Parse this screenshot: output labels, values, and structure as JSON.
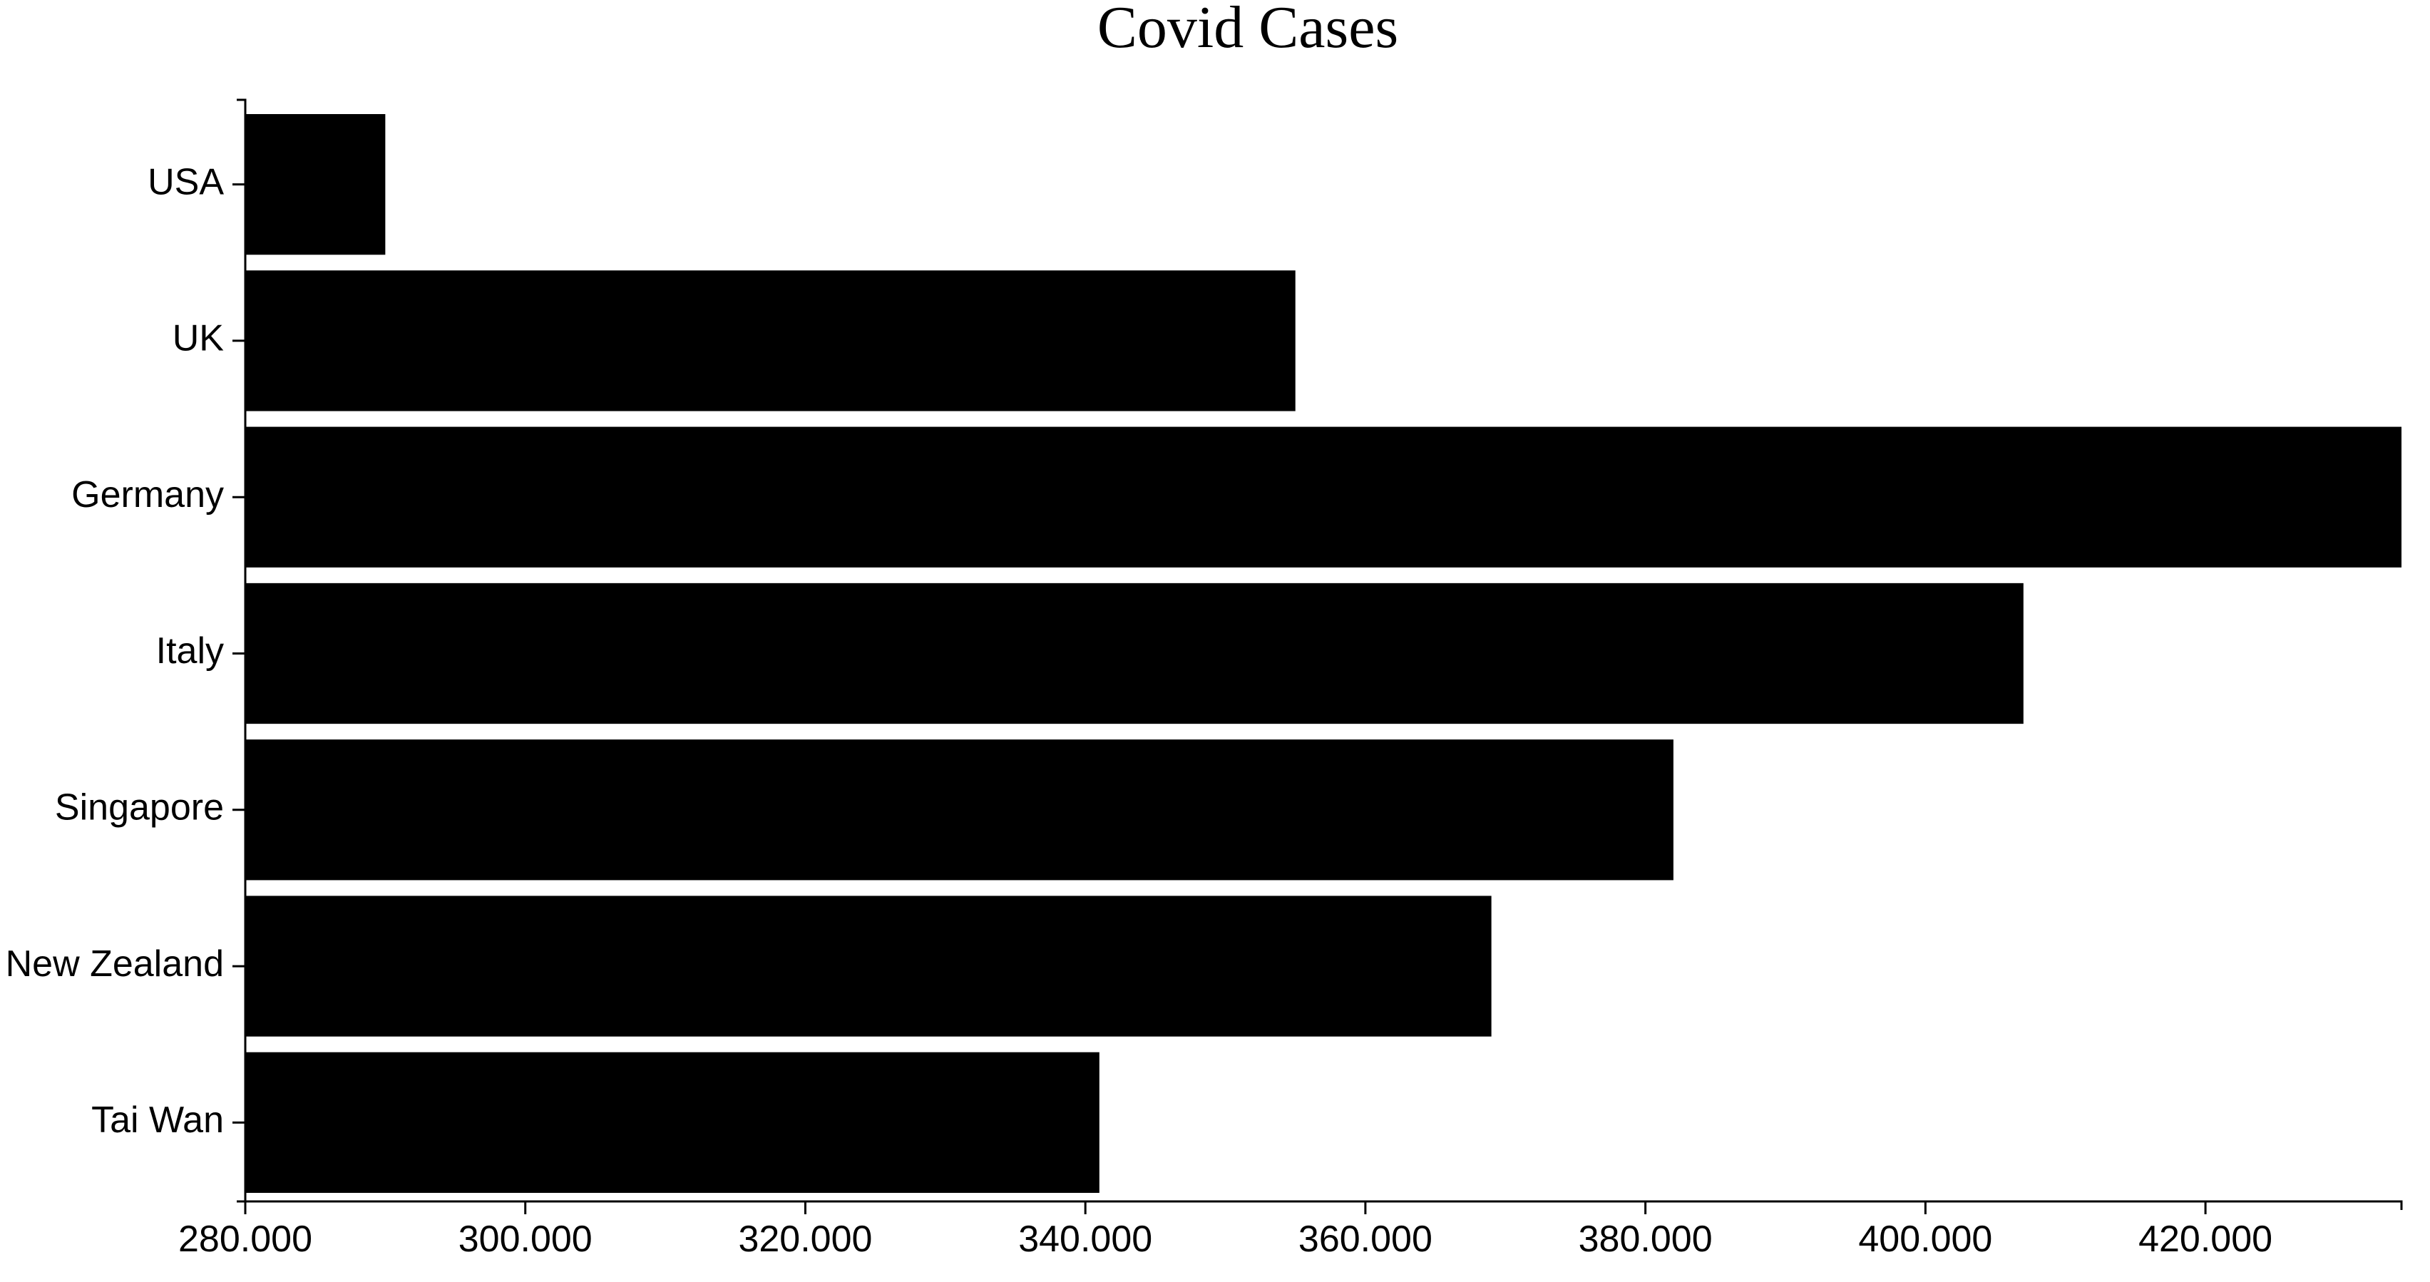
{
  "chart_data": {
    "type": "bar",
    "orientation": "horizontal",
    "title": "Covid Cases",
    "xlabel": "",
    "ylabel": "",
    "categories": [
      "USA",
      "UK",
      "Germany",
      "Italy",
      "Singapore",
      "New Zealand",
      "Tai Wan"
    ],
    "values": [
      290000,
      355000,
      434000,
      407000,
      382000,
      369000,
      341000
    ],
    "xlim": [
      280000,
      434000
    ],
    "x_ticks": [
      280000,
      300000,
      320000,
      340000,
      360000,
      380000,
      400000,
      420000
    ],
    "x_tick_labels": [
      "280.000",
      "300.000",
      "320.000",
      "340.000",
      "360.000",
      "380.000",
      "400.000",
      "420.000"
    ],
    "bar_color": "#000000",
    "grid": false,
    "legend": "none"
  }
}
